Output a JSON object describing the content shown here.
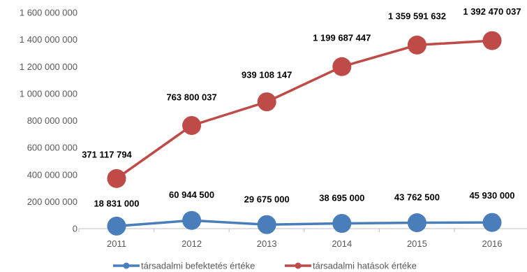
{
  "chart_data": {
    "type": "line",
    "categories": [
      "2011",
      "2012",
      "2013",
      "2014",
      "2015",
      "2016"
    ],
    "ylim": [
      0,
      1600000000
    ],
    "y_ticks": [
      {
        "value": 0,
        "label": "0"
      },
      {
        "value": 200000000,
        "label": "200 000 000"
      },
      {
        "value": 400000000,
        "label": "400 000 000"
      },
      {
        "value": 600000000,
        "label": "600 000 000"
      },
      {
        "value": 800000000,
        "label": "800 000 000"
      },
      {
        "value": 1000000000,
        "label": "1 000 000 000"
      },
      {
        "value": 1200000000,
        "label": "1 200 000 000"
      },
      {
        "value": 1400000000,
        "label": "1 400 000 000"
      },
      {
        "value": 1600000000,
        "label": "1 600 000 000"
      }
    ],
    "grid": false,
    "legend_position": "bottom",
    "series": [
      {
        "name": "társadalmi befektetés értéke",
        "color": "#4a7ebb",
        "values": [
          18831000,
          60944500,
          29675000,
          38695000,
          43762500,
          45930000
        ],
        "labels": [
          "18 831 000",
          "60 944 500",
          "29 675 000",
          "38 695 000",
          "43 762 500",
          "45 930 000"
        ]
      },
      {
        "name": "társadalmi hatások értéke",
        "color": "#be4b48",
        "values": [
          371117794,
          763800037,
          939108147,
          1199687447,
          1359591632,
          1392470037
        ],
        "labels": [
          "371 117 794",
          "763 800 037",
          "939 108 147",
          "1 199 687 447",
          "1 359 591 632",
          "1 392 470 037"
        ]
      }
    ]
  }
}
